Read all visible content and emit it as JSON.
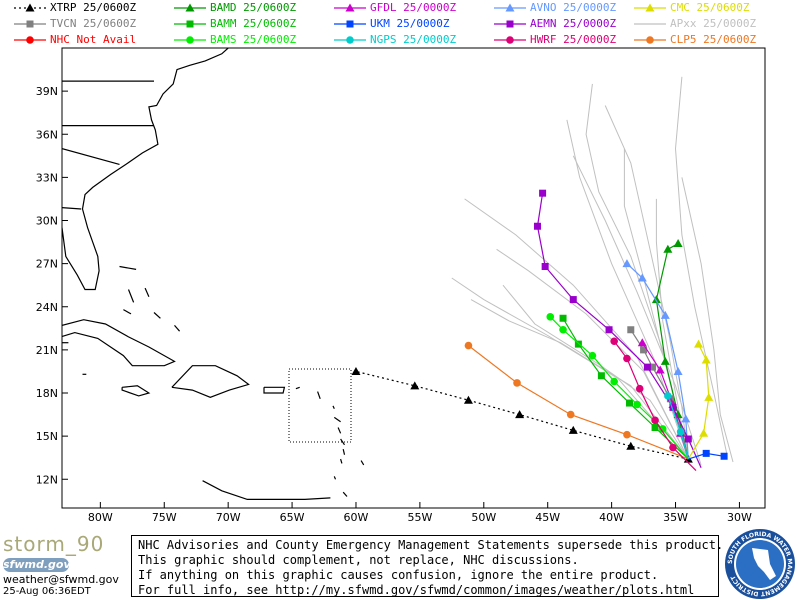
{
  "legend": [
    {
      "label": "XTRP  25/0600Z",
      "color": "#000000",
      "marker": "triangle",
      "dotted": true
    },
    {
      "label": "BAMD  25/0600Z",
      "color": "#009900",
      "marker": "triangle"
    },
    {
      "label": "GFDL  25/0000Z",
      "color": "#cc00cc",
      "marker": "triangle"
    },
    {
      "label": "AVNO  25/0000Z",
      "color": "#6699ff",
      "marker": "triangle"
    },
    {
      "label": "CMC  25/0600Z",
      "color": "#dddd00",
      "marker": "triangle"
    },
    {
      "label": "TVCN  25/0600Z",
      "color": "#808080",
      "marker": "square"
    },
    {
      "label": "BAMM  25/0600Z",
      "color": "#00bb00",
      "marker": "square"
    },
    {
      "label": "UKM   25/0000Z",
      "color": "#0044ff",
      "marker": "square"
    },
    {
      "label": "AEMN  25/0000Z",
      "color": "#9900cc",
      "marker": "square"
    },
    {
      "label": "APxx  25/0000Z",
      "color": "#c0c0c0",
      "marker": "none"
    },
    {
      "label": "NHC   Not Avail",
      "color": "#ff0000",
      "marker": "circle"
    },
    {
      "label": "BAMS  25/0600Z",
      "color": "#00ee00",
      "marker": "circle"
    },
    {
      "label": "NGPS  25/0000Z",
      "color": "#00cccc",
      "marker": "circle"
    },
    {
      "label": "HWRF  25/0000Z",
      "color": "#dd0077",
      "marker": "circle"
    },
    {
      "label": "CLP5  25/0600Z",
      "color": "#ee7722",
      "marker": "circle"
    }
  ],
  "chart_data": {
    "type": "line",
    "title": "",
    "xlabel": "",
    "ylabel": "",
    "xlim": [
      -83,
      -28
    ],
    "ylim": [
      10,
      42
    ],
    "x_ticks": [
      -80,
      -75,
      -70,
      -65,
      -60,
      -55,
      -50,
      -45,
      -40,
      -35,
      -30
    ],
    "x_tick_labels": [
      "80W",
      "75W",
      "70W",
      "65W",
      "60W",
      "55W",
      "50W",
      "45W",
      "40W",
      "35W",
      "30W"
    ],
    "y_ticks": [
      12,
      15,
      18,
      21,
      24,
      27,
      30,
      33,
      36,
      39
    ],
    "y_tick_labels": [
      "12N",
      "15N",
      "18N",
      "21N",
      "24N",
      "27N",
      "30N",
      "33N",
      "36N",
      "39N"
    ],
    "series": [
      {
        "name": "XTRP",
        "color": "#000000",
        "dash": "2,3",
        "marker": "triangle",
        "points": [
          [
            -34.0,
            13.4
          ],
          [
            -38.5,
            14.3
          ],
          [
            -43.0,
            15.4
          ],
          [
            -47.2,
            16.5
          ],
          [
            -51.2,
            17.5
          ],
          [
            -55.4,
            18.5
          ],
          [
            -60.0,
            19.5
          ]
        ]
      },
      {
        "name": "CLP5",
        "color": "#ee7722",
        "marker": "circle",
        "points": [
          [
            -34.0,
            13.4
          ],
          [
            -38.8,
            15.1
          ],
          [
            -43.2,
            16.5
          ],
          [
            -47.4,
            18.7
          ],
          [
            -51.2,
            21.3
          ]
        ]
      },
      {
        "name": "BAMD",
        "color": "#009900",
        "marker": "triangle",
        "points": [
          [
            -34.0,
            13.4
          ],
          [
            -34.8,
            16.5
          ],
          [
            -35.8,
            20.2
          ],
          [
            -36.5,
            24.5
          ],
          [
            -35.6,
            28.0
          ],
          [
            -34.8,
            28.4
          ]
        ]
      },
      {
        "name": "BAMM",
        "color": "#00bb00",
        "marker": "square",
        "points": [
          [
            -34.0,
            13.4
          ],
          [
            -36.6,
            15.6
          ],
          [
            -38.6,
            17.3
          ],
          [
            -40.8,
            19.2
          ],
          [
            -42.6,
            21.4
          ],
          [
            -43.8,
            23.2
          ]
        ]
      },
      {
        "name": "BAMS",
        "color": "#00ee00",
        "marker": "circle",
        "points": [
          [
            -34.0,
            13.4
          ],
          [
            -36.0,
            15.5
          ],
          [
            -38.0,
            17.2
          ],
          [
            -39.8,
            18.8
          ],
          [
            -41.5,
            20.6
          ],
          [
            -43.8,
            22.4
          ],
          [
            -44.8,
            23.3
          ]
        ]
      },
      {
        "name": "TVCN",
        "color": "#808080",
        "marker": "square",
        "points": [
          [
            -34.0,
            13.4
          ],
          [
            -34.5,
            15.2
          ],
          [
            -35.4,
            17.6
          ],
          [
            -36.8,
            19.8
          ],
          [
            -37.5,
            21.0
          ],
          [
            -38.5,
            22.4
          ]
        ]
      },
      {
        "name": "GFDL",
        "color": "#cc00cc",
        "marker": "triangle",
        "points": [
          [
            -34.0,
            13.4
          ],
          [
            -34.6,
            15.2
          ],
          [
            -35.2,
            17.2
          ],
          [
            -36.2,
            19.6
          ],
          [
            -37.6,
            21.5
          ]
        ]
      },
      {
        "name": "AVNO",
        "color": "#6699ff",
        "marker": "triangle",
        "points": [
          [
            -34.0,
            13.4
          ],
          [
            -34.2,
            16.2
          ],
          [
            -34.8,
            19.5
          ],
          [
            -35.8,
            23.4
          ],
          [
            -37.6,
            26.0
          ],
          [
            -38.8,
            27.0
          ]
        ]
      },
      {
        "name": "AEMN",
        "color": "#9900cc",
        "marker": "square",
        "points": [
          [
            -33.0,
            12.8
          ],
          [
            -34.0,
            14.8
          ],
          [
            -35.2,
            17.0
          ],
          [
            -37.2,
            19.8
          ],
          [
            -40.2,
            22.4
          ],
          [
            -43.0,
            24.5
          ],
          [
            -45.2,
            26.8
          ],
          [
            -45.8,
            29.6
          ],
          [
            -45.4,
            31.9
          ]
        ]
      },
      {
        "name": "HWRF",
        "color": "#dd0077",
        "marker": "circle",
        "points": [
          [
            -33.4,
            12.6
          ],
          [
            -35.2,
            14.2
          ],
          [
            -36.6,
            16.1
          ],
          [
            -37.8,
            18.3
          ],
          [
            -38.8,
            20.4
          ],
          [
            -39.8,
            21.6
          ]
        ]
      },
      {
        "name": "CMC",
        "color": "#dddd00",
        "marker": "triangle",
        "points": [
          [
            -34.0,
            13.4
          ],
          [
            -32.8,
            15.2
          ],
          [
            -32.4,
            17.7
          ],
          [
            -32.6,
            20.3
          ],
          [
            -33.2,
            21.4
          ]
        ]
      },
      {
        "name": "UKM",
        "color": "#0044ff",
        "marker": "square",
        "points": [
          [
            -34.0,
            13.4
          ],
          [
            -32.6,
            13.8
          ],
          [
            -31.2,
            13.6
          ]
        ]
      },
      {
        "name": "NGPS",
        "color": "#00cccc",
        "marker": "circle",
        "points": [
          [
            -34.0,
            13.4
          ],
          [
            -34.6,
            15.3
          ],
          [
            -35.6,
            17.8
          ]
        ]
      },
      {
        "name": "",
        "color": "#c0c0c0",
        "marker": "none",
        "points": [
          [
            -34.0,
            13.4
          ],
          [
            -36.5,
            20.0
          ],
          [
            -40.0,
            27.0
          ],
          [
            -42.5,
            33.0
          ],
          [
            -43.5,
            37.0
          ]
        ]
      },
      {
        "name": "",
        "color": "#c0c0c0",
        "marker": "none",
        "points": [
          [
            -34.0,
            13.4
          ],
          [
            -35.5,
            19.0
          ],
          [
            -37.5,
            26.0
          ],
          [
            -39.0,
            31.0
          ],
          [
            -39.0,
            35.0
          ]
        ]
      },
      {
        "name": "",
        "color": "#c0c0c0",
        "marker": "none",
        "points": [
          [
            -34.0,
            13.4
          ],
          [
            -35.0,
            18.0
          ],
          [
            -36.0,
            23.0
          ],
          [
            -36.5,
            28.5
          ],
          [
            -36.5,
            31.5
          ]
        ]
      },
      {
        "name": "",
        "color": "#c0c0c0",
        "marker": "none",
        "points": [
          [
            -34.0,
            13.4
          ],
          [
            -37.5,
            19.5
          ],
          [
            -42.0,
            23.5
          ],
          [
            -46.5,
            26.5
          ],
          [
            -49.0,
            28.0
          ]
        ]
      },
      {
        "name": "",
        "color": "#c0c0c0",
        "marker": "none",
        "points": [
          [
            -34.0,
            13.4
          ],
          [
            -38.5,
            18.5
          ],
          [
            -44.0,
            21.5
          ],
          [
            -48.0,
            23.0
          ],
          [
            -51.0,
            24.5
          ]
        ]
      },
      {
        "name": "",
        "color": "#c0c0c0",
        "marker": "none",
        "points": [
          [
            -34.0,
            13.4
          ],
          [
            -37.0,
            17.5
          ],
          [
            -41.0,
            20.0
          ],
          [
            -46.0,
            22.8
          ],
          [
            -48.5,
            25.5
          ]
        ]
      },
      {
        "name": "",
        "color": "#c0c0c0",
        "marker": "none",
        "points": [
          [
            -34.0,
            13.4
          ],
          [
            -34.5,
            17.0
          ],
          [
            -35.5,
            22.0
          ],
          [
            -37.0,
            28.0
          ],
          [
            -38.5,
            34.0
          ],
          [
            -40.5,
            38.0
          ]
        ]
      },
      {
        "name": "",
        "color": "#c0c0c0",
        "marker": "none",
        "points": [
          [
            -31.0,
            13.8
          ],
          [
            -32.0,
            18.0
          ],
          [
            -33.5,
            24.0
          ],
          [
            -34.5,
            29.0
          ],
          [
            -35.0,
            35.0
          ],
          [
            -34.5,
            40.0
          ]
        ]
      },
      {
        "name": "",
        "color": "#c0c0c0",
        "marker": "none",
        "points": [
          [
            -33.0,
            13.0
          ],
          [
            -35.0,
            18.5
          ],
          [
            -38.0,
            25.0
          ],
          [
            -40.5,
            30.0
          ],
          [
            -43.0,
            34.5
          ]
        ]
      },
      {
        "name": "",
        "color": "#c0c0c0",
        "marker": "none",
        "points": [
          [
            -34.0,
            13.4
          ],
          [
            -38.0,
            20.5
          ],
          [
            -43.0,
            25.5
          ],
          [
            -47.5,
            29.0
          ],
          [
            -51.5,
            31.5
          ]
        ]
      },
      {
        "name": "",
        "color": "#c0c0c0",
        "marker": "none",
        "points": [
          [
            -34.0,
            13.4
          ],
          [
            -39.5,
            19.0
          ],
          [
            -45.0,
            22.0
          ],
          [
            -50.0,
            24.5
          ],
          [
            -52.5,
            26.0
          ]
        ]
      },
      {
        "name": "",
        "color": "#c0c0c0",
        "marker": "none",
        "points": [
          [
            -30.5,
            13.2
          ],
          [
            -31.5,
            16.5
          ],
          [
            -32.0,
            21.0
          ],
          [
            -33.0,
            27.0
          ],
          [
            -34.5,
            33.0
          ]
        ]
      },
      {
        "name": "",
        "color": "#c0c0c0",
        "marker": "none",
        "points": [
          [
            -34.0,
            13.4
          ],
          [
            -36.0,
            21.0
          ],
          [
            -38.5,
            27.5
          ],
          [
            -41.0,
            32.0
          ],
          [
            -42.0,
            36.0
          ],
          [
            -41.5,
            39.5
          ]
        ]
      }
    ]
  },
  "footer": {
    "storm_name": "storm_90",
    "logo_text": "sfwmd.gov",
    "email": "weather@sfwmd.gov",
    "timestamp": "25-Aug 06:36EDT",
    "disclaimer": [
      "NHC Advisories and County Emergency Management Statements supersede this product.",
      "This graphic should complement, not replace, NHC discussions.",
      "If anything on this graphic causes confusion, ignore the entire product.",
      "For full info, see  http://my.sfwmd.gov/sfwmd/common/images/weather/plots.html"
    ],
    "seal_text": "SOUTH FLORIDA WATER MANAGEMENT DISTRICT"
  }
}
